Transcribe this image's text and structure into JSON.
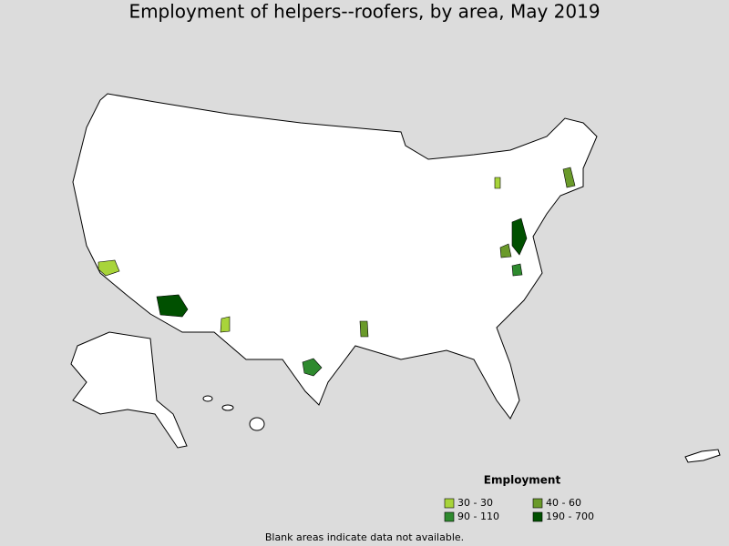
{
  "title": "Employment of helpers--roofers, by area, May 2019",
  "legend": {
    "title": "Employment",
    "items": [
      {
        "label": "30 - 30",
        "color": "#a8d43a"
      },
      {
        "label": "40 - 60",
        "color": "#6a9a2a"
      },
      {
        "label": "90 - 110",
        "color": "#2e8a2e"
      },
      {
        "label": "190 - 700",
        "color": "#005000"
      }
    ]
  },
  "note": "Blank areas indicate data not available."
}
